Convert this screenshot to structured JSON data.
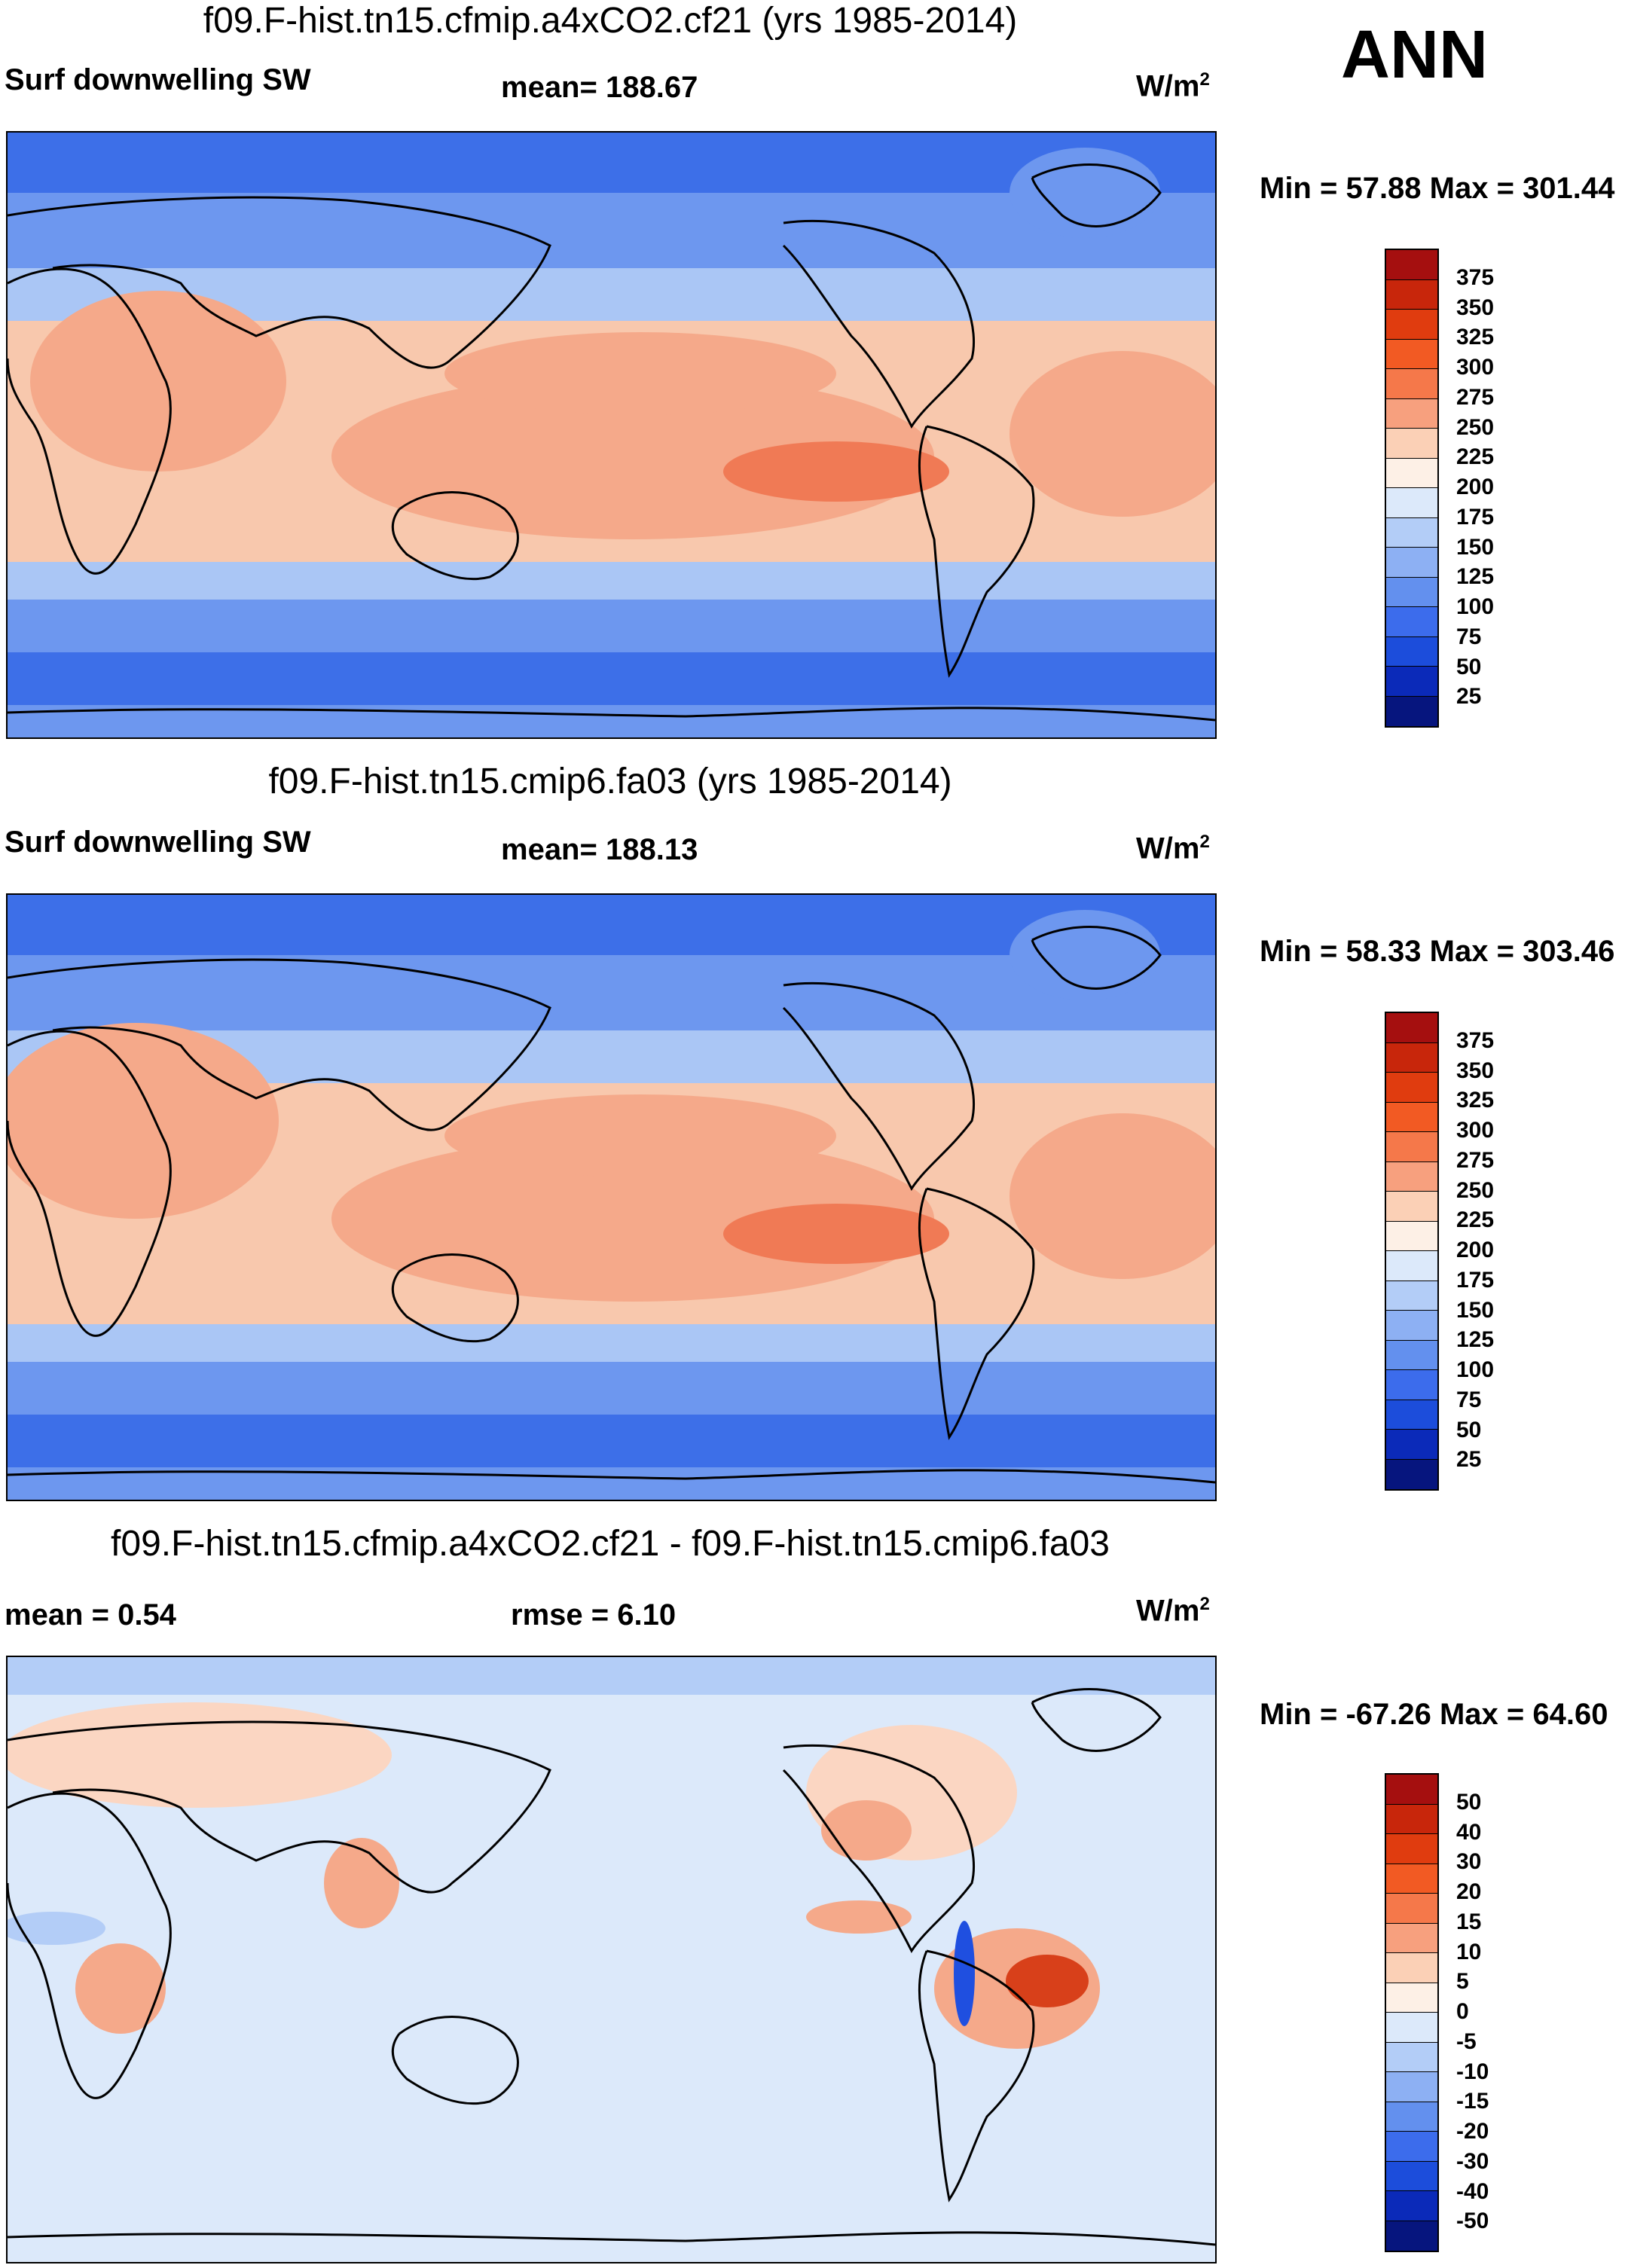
{
  "figure": {
    "season_label": "ANN",
    "panels": [
      {
        "title": "f09.F-hist.tn15.cfmip.a4xCO2.cf21 (yrs 1985-2014)",
        "left_label": "Surf downwelling SW",
        "center_label": "mean= 188.67",
        "units_base": "W/m",
        "units_exp": "2",
        "minmax": "Min =  57.88 Max = 301.44",
        "colorbar_colors": [
          "#a50f0f",
          "#c8260b",
          "#e03c0f",
          "#f25a23",
          "#f5784a",
          "#f7a07e",
          "#fbd0b6",
          "#fdf0e6",
          "#dce9fa",
          "#b3cdf7",
          "#8db0f3",
          "#6390ee",
          "#3c6cec",
          "#1c4ddb",
          "#0b2ab9",
          "#06157e"
        ],
        "colorbar_labels": [
          "375",
          "350",
          "325",
          "300",
          "275",
          "250",
          "225",
          "200",
          "175",
          "150",
          "125",
          "100",
          "75",
          "50",
          "25"
        ],
        "map_colors": {
          "polar": "#3d6fe8",
          "subpolar": "#6d97ef",
          "mid": "#aac6f5",
          "subtrop": "#f8c8ad",
          "trop": "#f5a98a",
          "peak": "#f07a55",
          "land_dark": "#5079e9"
        }
      },
      {
        "title": "f09.F-hist.tn15.cmip6.fa03 (yrs 1985-2014)",
        "left_label": "Surf downwelling SW",
        "center_label": "mean= 188.13",
        "units_base": "W/m",
        "units_exp": "2",
        "minmax": "Min =  58.33 Max = 303.46",
        "colorbar_colors": [
          "#a50f0f",
          "#c8260b",
          "#e03c0f",
          "#f25a23",
          "#f5784a",
          "#f7a07e",
          "#fbd0b6",
          "#fdf0e6",
          "#dce9fa",
          "#b3cdf7",
          "#8db0f3",
          "#6390ee",
          "#3c6cec",
          "#1c4ddb",
          "#0b2ab9",
          "#06157e"
        ],
        "colorbar_labels": [
          "375",
          "350",
          "325",
          "300",
          "275",
          "250",
          "225",
          "200",
          "175",
          "150",
          "125",
          "100",
          "75",
          "50",
          "25"
        ],
        "map_colors": {
          "polar": "#3d6fe8",
          "subpolar": "#6d97ef",
          "mid": "#aac6f5",
          "subtrop": "#f8c8ad",
          "trop": "#f5a98a",
          "peak": "#f07a55",
          "land_dark": "#5079e9"
        }
      },
      {
        "title": "f09.F-hist.tn15.cfmip.a4xCO2.cf21 - f09.F-hist.tn15.cmip6.fa03",
        "left_label": "mean =   0.54",
        "center_label": "rmse =   6.10",
        "units_base": "W/m",
        "units_exp": "2",
        "minmax": "Min = -67.26 Max =  64.60",
        "colorbar_colors": [
          "#a50f0f",
          "#c8260b",
          "#e03c0f",
          "#f25a23",
          "#f5784a",
          "#f7a07e",
          "#fbd0b6",
          "#fdf0e6",
          "#dce9fa",
          "#b3cdf7",
          "#8db0f3",
          "#6390ee",
          "#3c6cec",
          "#1c4ddb",
          "#0b2ab9",
          "#06157e"
        ],
        "colorbar_labels": [
          "50",
          "40",
          "30",
          "20",
          "15",
          "10",
          "5",
          "0",
          "-5",
          "-10",
          "-15",
          "-20",
          "-30",
          "-40",
          "-50"
        ],
        "map_colors": {
          "base": "#dce9fa",
          "warm": "#fbd6c2",
          "warm2": "#f5a98a",
          "hot": "#d8401a",
          "cool": "#b3cdf7",
          "cold": "#1f4fe0"
        }
      }
    ]
  },
  "chart_data": [
    {
      "type": "heatmap",
      "title": "f09.F-hist.tn15.cfmip.a4xCO2.cf21 (yrs 1985-2014)",
      "variable": "Surf downwelling SW",
      "units": "W/m2",
      "mean": 188.67,
      "min": 57.88,
      "max": 301.44,
      "contour_levels": [
        25,
        50,
        75,
        100,
        125,
        150,
        175,
        200,
        225,
        250,
        275,
        300,
        325,
        350,
        375
      ],
      "season": "ANN"
    },
    {
      "type": "heatmap",
      "title": "f09.F-hist.tn15.cmip6.fa03 (yrs 1985-2014)",
      "variable": "Surf downwelling SW",
      "units": "W/m2",
      "mean": 188.13,
      "min": 58.33,
      "max": 303.46,
      "contour_levels": [
        25,
        50,
        75,
        100,
        125,
        150,
        175,
        200,
        225,
        250,
        275,
        300,
        325,
        350,
        375
      ],
      "season": "ANN"
    },
    {
      "type": "heatmap",
      "title": "f09.F-hist.tn15.cfmip.a4xCO2.cf21 - f09.F-hist.tn15.cmip6.fa03",
      "units": "W/m2",
      "mean": 0.54,
      "rmse": 6.1,
      "min": -67.26,
      "max": 64.6,
      "contour_levels": [
        -50,
        -40,
        -30,
        -20,
        -15,
        -10,
        -5,
        0,
        5,
        10,
        15,
        20,
        30,
        40,
        50
      ],
      "season": "ANN"
    }
  ]
}
